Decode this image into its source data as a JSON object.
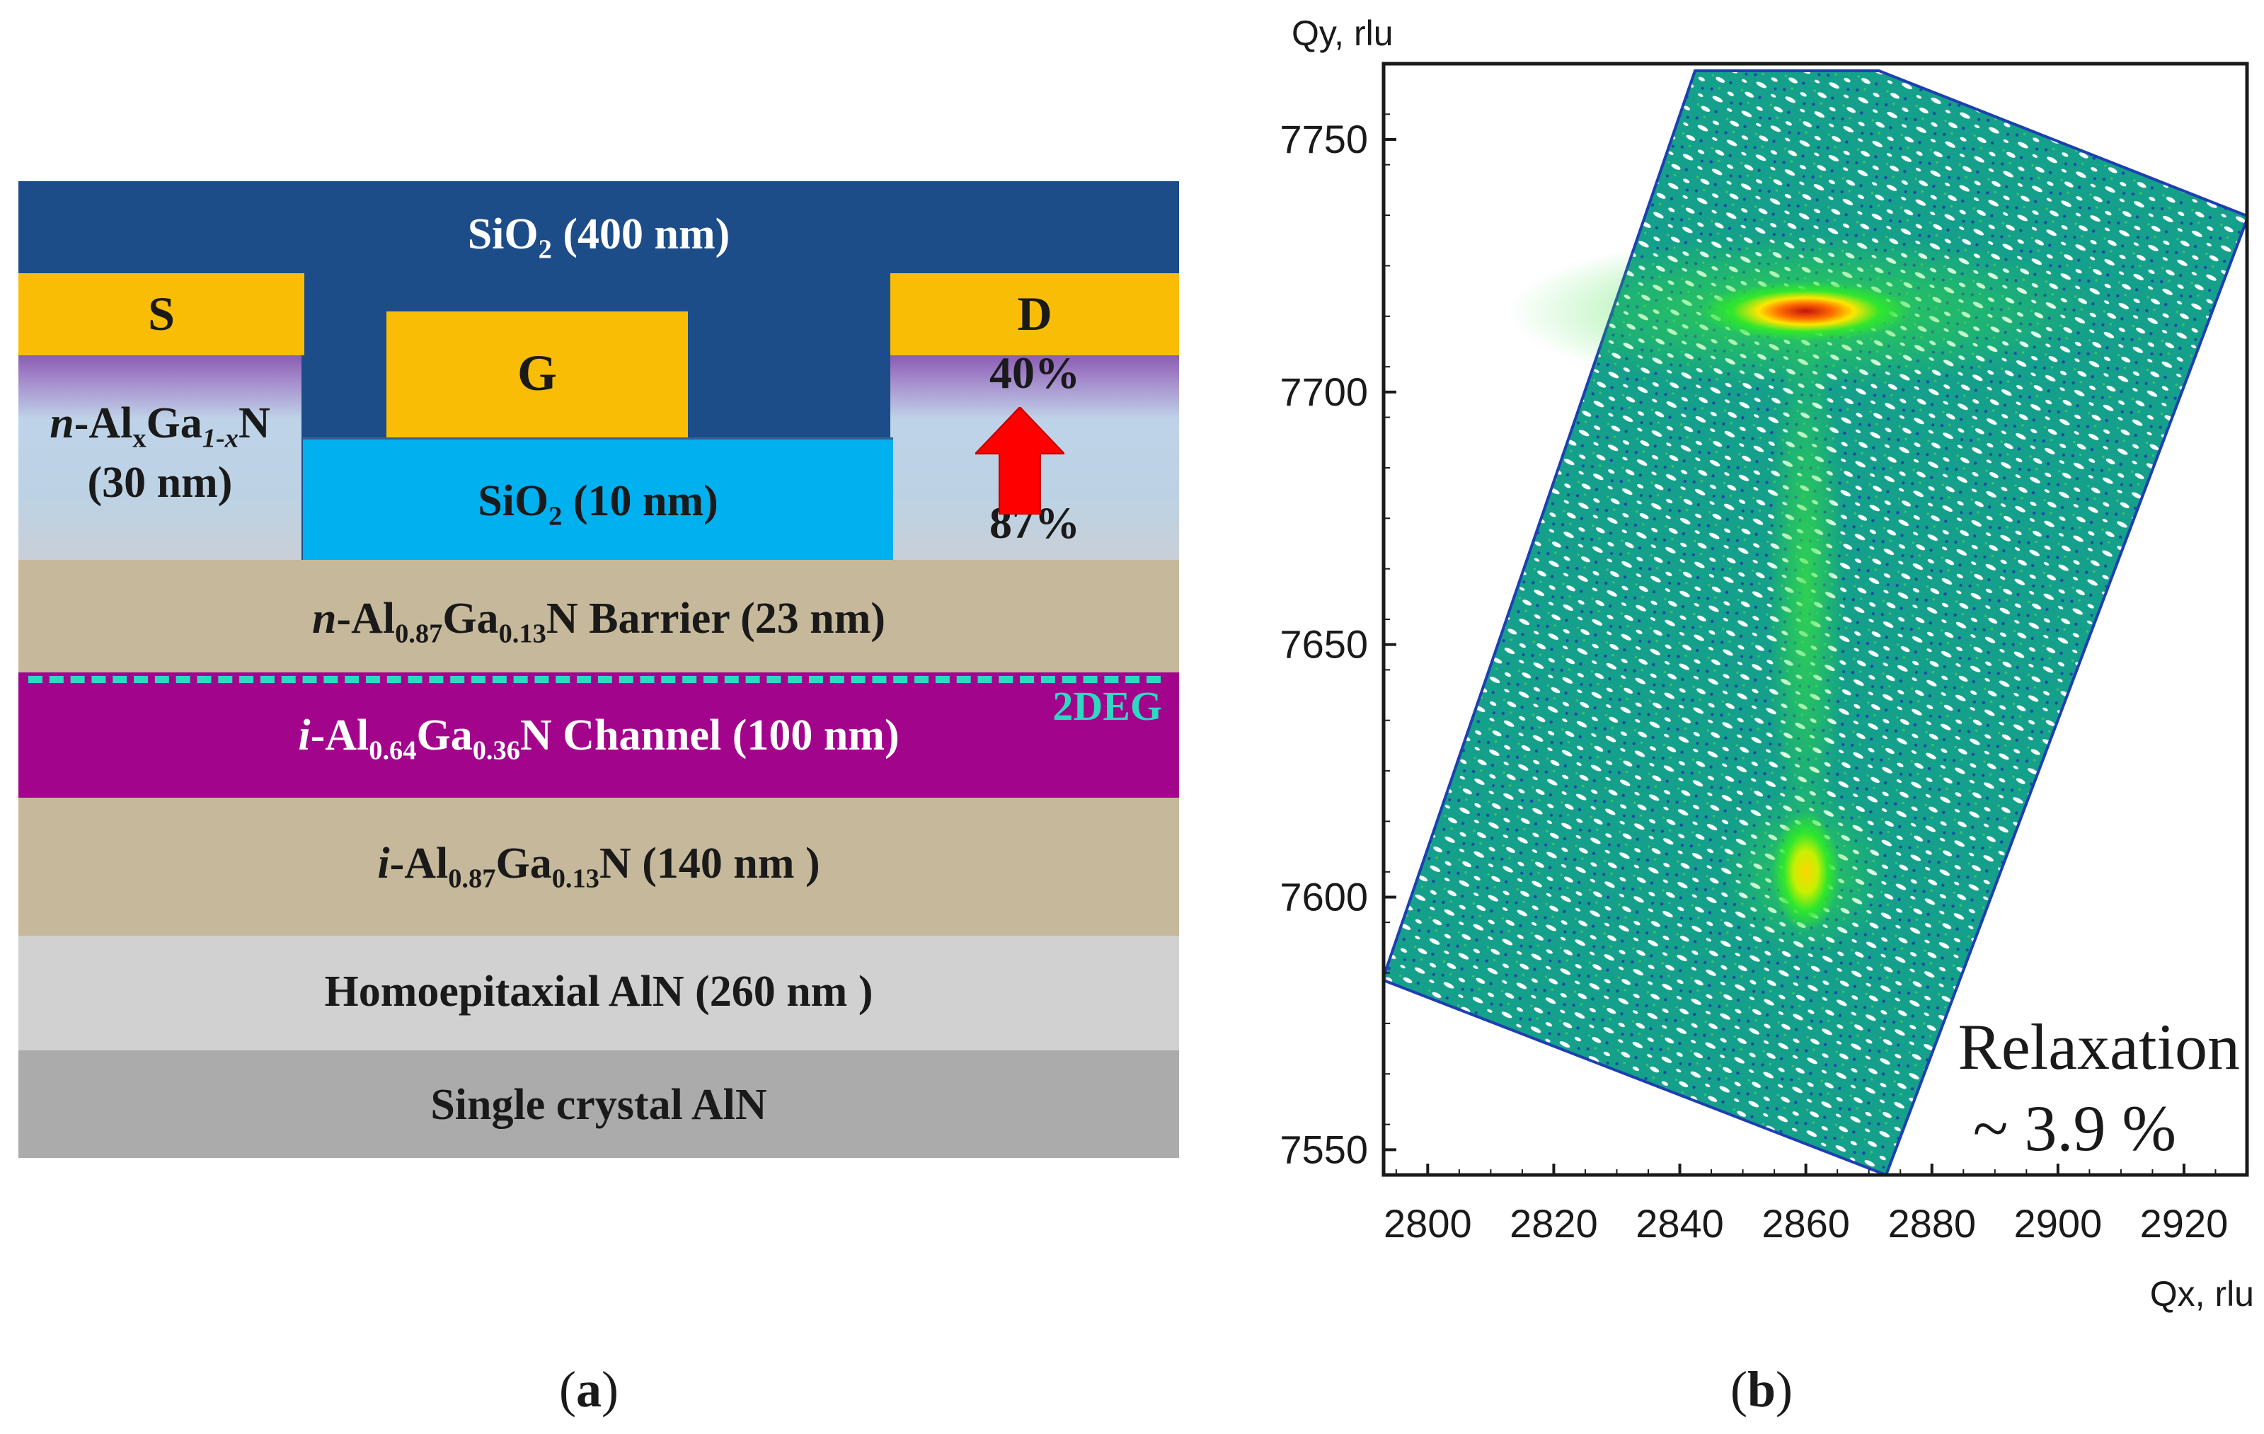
{
  "panel_a": {
    "sio2_top": {
      "pre": "SiO",
      "sub": "2",
      "post": " (400 nm)"
    },
    "source": "S",
    "drain": "D",
    "gate": "G",
    "algan": {
      "pre_i": "n",
      "pre": "-Al",
      "sub1": "x",
      "mid": "Ga",
      "sub2": "1-x",
      "post": "N",
      "line2": "(30 nm)"
    },
    "sio2_thin": {
      "pre": "SiO",
      "sub": "2",
      "post": " (10 nm)"
    },
    "grade_top": "40%",
    "grade_bottom": "87%",
    "barrier": {
      "pre_i": "n",
      "pre": "-Al",
      "sub1": "0.87",
      "mid": "Ga",
      "sub2": "0.13",
      "post": "N Barrier (23 nm)"
    },
    "twodeg": "2DEG",
    "channel": {
      "pre_i": "i",
      "pre": "-Al",
      "sub1": "0.64",
      "mid": "Ga",
      "sub2": "0.36",
      "post": "N Channel (100 nm)"
    },
    "buffer": {
      "pre_i": "i",
      "pre": "-Al",
      "sub1": "0.87",
      "mid": "Ga",
      "sub2": "0.13",
      "post": "N (140 nm )"
    },
    "homoepi": "Homoepitaxial AlN (260 nm )",
    "substrate": "Single crystal AlN",
    "caption": {
      "open": "(",
      "letter": "a",
      "close": ")"
    }
  },
  "panel_b": {
    "caption": {
      "open": "(",
      "letter": "b",
      "close": ")"
    },
    "relaxation_label": "Relaxation",
    "relaxation_value": "~ 3.9 %"
  },
  "chart_data": {
    "type": "heatmap",
    "title": "",
    "xlabel": "Qx, rlu",
    "ylabel": "Qy, rlu",
    "xlim": [
      2793,
      2930
    ],
    "ylim": [
      7545,
      7765
    ],
    "x_ticks": [
      2800,
      2820,
      2840,
      2860,
      2880,
      2900,
      2920
    ],
    "y_ticks": [
      7550,
      7600,
      7650,
      7700,
      7750
    ],
    "peaks": [
      {
        "name": "upper layer peak",
        "qx": 2860,
        "qy": 7716
      },
      {
        "name": "lower layer peak",
        "qx": 2860,
        "qy": 7605
      }
    ],
    "annotation": "Relaxation ~ 3.9 %"
  },
  "colors": {
    "sio2_thick": "#1d4d88",
    "metal": "#f9bd05",
    "sio2_thin": "#00b0ef",
    "barrier": "#c6b89a",
    "channel": "#a3048c",
    "homoepi": "#d1d1d1",
    "substrate": "#ababab",
    "twodeg": "#2fd8c0",
    "arrow": "#ff0000",
    "rsm_background": "#14a08a"
  }
}
